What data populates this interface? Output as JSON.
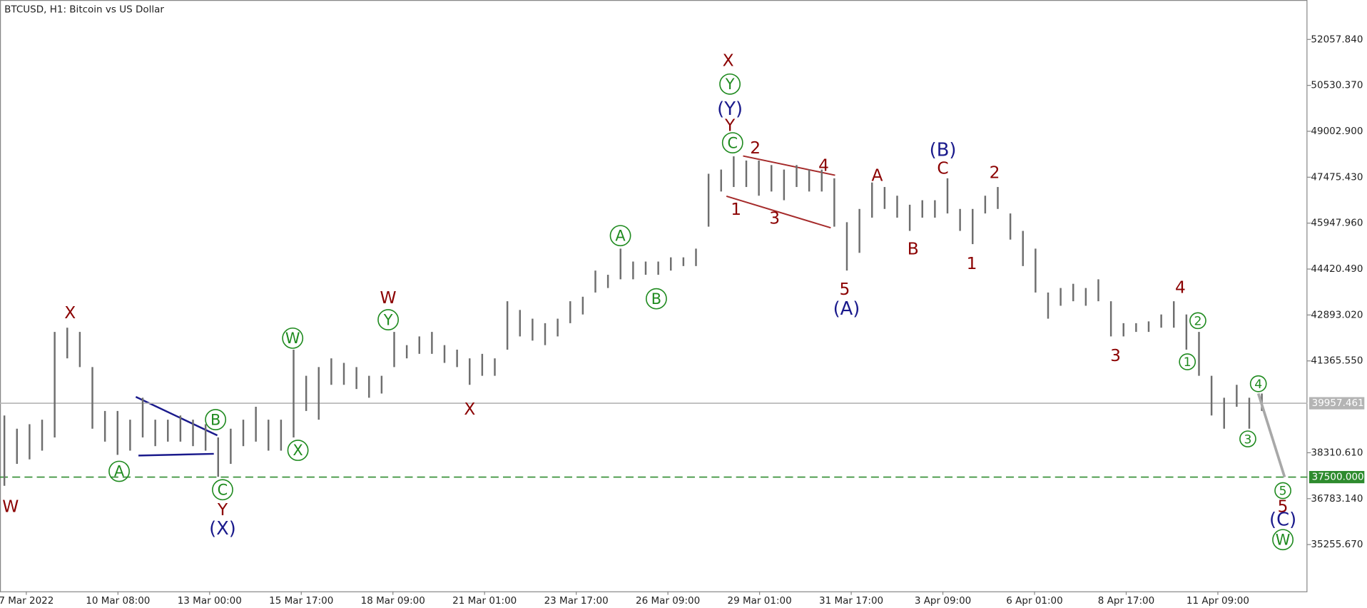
{
  "chart_data": {
    "type": "ohlc",
    "title": "BTCUSD, H1:  Bitcoin vs US Dollar",
    "color": "#6e6e6e",
    "x_labels": [
      "7 Mar 2022",
      "10 Mar 08:00",
      "13 Mar 00:00",
      "15 Mar 17:00",
      "18 Mar 09:00",
      "21 Mar 01:00",
      "23 Mar 17:00",
      "26 Mar 09:00",
      "29 Mar 01:00",
      "31 Mar 17:00",
      "3 Apr 09:00",
      "6 Apr 01:00",
      "8 Apr 17:00",
      "11 Apr 09:00"
    ],
    "highs": [
      39550,
      39110,
      39260,
      39410,
      42330,
      42470,
      42330,
      41160,
      39700,
      39700,
      39410,
      40140,
      39410,
      39410,
      39550,
      39410,
      39260,
      38820,
      39110,
      39410,
      39840,
      39410,
      39410,
      41740,
      40870,
      41160,
      41450,
      41300,
      41160,
      40870,
      40870,
      42330,
      41890,
      42180,
      42330,
      41890,
      41740,
      41450,
      41600,
      41450,
      43350,
      43060,
      42770,
      42620,
      42770,
      43350,
      43500,
      44370,
      44230,
      45100,
      44670,
      44670,
      44670,
      44810,
      44810,
      45100,
      47590,
      47730,
      48170,
      48030,
      48030,
      47880,
      47730,
      47880,
      47730,
      47730,
      47440,
      45980,
      46420,
      47300,
      47150,
      46860,
      46560,
      46710,
      46710,
      47440,
      46420,
      46420,
      46860,
      47150,
      46270,
      45690,
      45100,
      43640,
      43790,
      43930,
      43790,
      44080,
      43350,
      42620,
      42620,
      42680,
      42910,
      43350,
      42910,
      42330,
      40870,
      40140,
      40570,
      40140,
      40280
    ],
    "lows": [
      37210,
      37940,
      38090,
      38380,
      38820,
      41450,
      41160,
      39110,
      38680,
      38240,
      38380,
      38820,
      38530,
      38680,
      38680,
      38530,
      38380,
      37510,
      37940,
      38530,
      38680,
      38380,
      38380,
      38820,
      39700,
      39410,
      40570,
      40570,
      40430,
      40140,
      40280,
      41160,
      41450,
      41600,
      41600,
      41300,
      41160,
      40570,
      40870,
      40870,
      41740,
      42180,
      42040,
      41890,
      42180,
      42620,
      42910,
      43640,
      43790,
      44080,
      44080,
      44230,
      44230,
      44370,
      44520,
      44520,
      45830,
      47000,
      47150,
      47150,
      46860,
      47000,
      46710,
      47150,
      47000,
      47000,
      45830,
      44370,
      44960,
      46130,
      46420,
      46130,
      45690,
      46130,
      46130,
      46270,
      45690,
      45250,
      46270,
      46420,
      45400,
      44520,
      43640,
      42770,
      43200,
      43350,
      43200,
      43350,
      42180,
      42180,
      42330,
      42330,
      42470,
      42470,
      41740,
      40870,
      39550,
      39110,
      39840,
      39110,
      39700
    ],
    "ylim": [
      33700,
      53370
    ],
    "yticks": [
      {
        "value": 52057.84,
        "label": "52057.840"
      },
      {
        "value": 50530.37,
        "label": "50530.370"
      },
      {
        "value": 49002.9,
        "label": "49002.900"
      },
      {
        "value": 47475.43,
        "label": "47475.430"
      },
      {
        "value": 45947.96,
        "label": "45947.960"
      },
      {
        "value": 44420.49,
        "label": "44420.490"
      },
      {
        "value": 42893.02,
        "label": "42893.020"
      },
      {
        "value": 41365.55,
        "label": "41365.550"
      },
      {
        "value": 38310.61,
        "label": "38310.610"
      },
      {
        "value": 36783.14,
        "label": "36783.140"
      },
      {
        "value": 35255.67,
        "label": "35255.670"
      }
    ],
    "levels": [
      {
        "value": 39957.461,
        "label": "39957.461",
        "color": "#b4b4b4",
        "dashed": false
      },
      {
        "value": 37500,
        "label": "37500.000",
        "color": "#2e8b2e",
        "dashed": true
      }
    ],
    "annotations": [
      {
        "text": "W",
        "color": "#8b0000",
        "circled": false
      },
      {
        "text": "X",
        "color": "#8b0000",
        "circled": false
      },
      {
        "text": "A",
        "color": "#1e8a1e",
        "circled": true
      },
      {
        "text": "B",
        "color": "#1e8a1e",
        "circled": true
      },
      {
        "text": "C",
        "color": "#1e8a1e",
        "circled": true
      },
      {
        "text": "Y",
        "color": "#8b0000",
        "circled": false
      },
      {
        "text": "(X)",
        "color": "#1a1a8c",
        "circled": false
      },
      {
        "text": "W",
        "color": "#1e8a1e",
        "circled": true
      },
      {
        "text": "X",
        "color": "#1e8a1e",
        "circled": true
      },
      {
        "text": "W",
        "color": "#8b0000",
        "circled": false
      },
      {
        "text": "Y",
        "color": "#1e8a1e",
        "circled": true
      },
      {
        "text": "X",
        "color": "#8b0000",
        "circled": false
      },
      {
        "text": "A",
        "color": "#1e8a1e",
        "circled": true
      },
      {
        "text": "B",
        "color": "#1e8a1e",
        "circled": true
      },
      {
        "text": "X",
        "color": "#8b0000",
        "circled": false
      },
      {
        "text": "Y",
        "color": "#1e8a1e",
        "circled": true
      },
      {
        "text": "(Y)",
        "color": "#1a1a8c",
        "circled": false
      },
      {
        "text": "Y",
        "color": "#8b0000",
        "circled": false
      },
      {
        "text": "C",
        "color": "#1e8a1e",
        "circled": true
      },
      {
        "text": "2",
        "color": "#8b0000",
        "circled": false
      },
      {
        "text": "1",
        "color": "#8b0000",
        "circled": false
      },
      {
        "text": "3",
        "color": "#8b0000",
        "circled": false
      },
      {
        "text": "4",
        "color": "#8b0000",
        "circled": false
      },
      {
        "text": "5",
        "color": "#8b0000",
        "circled": false
      },
      {
        "text": "(A)",
        "color": "#1a1a8c",
        "circled": false
      },
      {
        "text": "A",
        "color": "#8b0000",
        "circled": false
      },
      {
        "text": "(B)",
        "color": "#1a1a8c",
        "circled": false
      },
      {
        "text": "C",
        "color": "#8b0000",
        "circled": false
      },
      {
        "text": "2",
        "color": "#8b0000",
        "circled": false
      },
      {
        "text": "B",
        "color": "#8b0000",
        "circled": false
      },
      {
        "text": "1",
        "color": "#8b0000",
        "circled": false
      },
      {
        "text": "4",
        "color": "#8b0000",
        "circled": false
      },
      {
        "text": "3",
        "color": "#8b0000",
        "circled": false
      },
      {
        "text": "2",
        "color": "#1e8a1e",
        "circled": true
      },
      {
        "text": "1",
        "color": "#1e8a1e",
        "circled": true
      },
      {
        "text": "4",
        "color": "#1e8a1e",
        "circled": true
      },
      {
        "text": "3",
        "color": "#1e8a1e",
        "circled": true
      },
      {
        "text": "5",
        "color": "#1e8a1e",
        "circled": true
      },
      {
        "text": "5",
        "color": "#8b0000",
        "circled": false
      },
      {
        "text": "(C)",
        "color": "#1a1a8c",
        "circled": false
      },
      {
        "text": "W",
        "color": "#1e8a1e",
        "circled": true
      }
    ]
  }
}
